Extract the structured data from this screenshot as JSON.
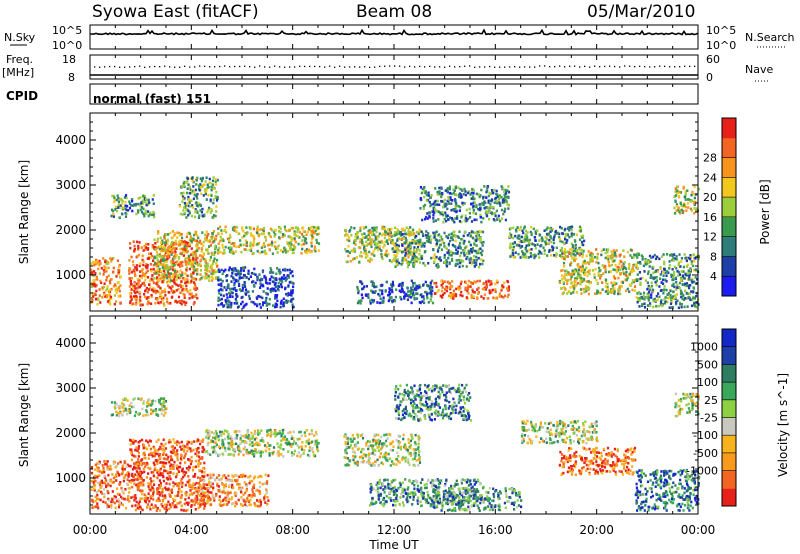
{
  "header": {
    "station": "Syowa East (fitACF)",
    "beam": "Beam 08",
    "date": "05/Mar/2010"
  },
  "summary_panels": {
    "nsky": {
      "label": "N.Sky",
      "right_label": "N.Search",
      "ticks_left": [
        "10^5",
        "10^0"
      ],
      "ticks_right": [
        "10^5",
        "10^0"
      ]
    },
    "freq": {
      "label_line1": "Freq.",
      "label_line2": "[MHz]",
      "right_label": "Nave",
      "ticks_left": [
        "18",
        "8"
      ],
      "ticks_right": [
        "60",
        "0"
      ]
    },
    "cpid": {
      "label": "CPID",
      "mode_text": "normal (fast) 151"
    }
  },
  "time_axis": {
    "label": "Time UT",
    "ticks": [
      "00:00",
      "04:00",
      "08:00",
      "12:00",
      "16:00",
      "20:00",
      "00:00"
    ]
  },
  "chart_data": [
    {
      "type": "heatmap",
      "name": "power",
      "ylabel": "Slant Range [km]",
      "ylim": [
        200,
        4600
      ],
      "yticks": [
        1000,
        2000,
        3000,
        4000
      ],
      "xlim_hours": [
        0,
        24
      ],
      "colorbar": {
        "label": "Power [dB]",
        "tick_labels": [
          "4",
          "8",
          "12",
          "16",
          "20",
          "24",
          "28"
        ],
        "colors": [
          "#1c1cf0",
          "#1e3fa8",
          "#2f7d7a",
          "#3a9b50",
          "#9ccd3c",
          "#f2c81e",
          "#f7941d",
          "#f26522",
          "#e8201a"
        ]
      },
      "echo_regions": [
        {
          "t": [
            0.0,
            1.2
          ],
          "range_km": [
            350,
            1400
          ],
          "level": 0.75
        },
        {
          "t": [
            0.8,
            2.5
          ],
          "range_km": [
            2300,
            2800
          ],
          "level": 0.35
        },
        {
          "t": [
            1.5,
            4.2
          ],
          "range_km": [
            350,
            1800
          ],
          "level": 0.85
        },
        {
          "t": [
            2.5,
            5.0
          ],
          "range_km": [
            900,
            2000
          ],
          "level": 0.6
        },
        {
          "t": [
            3.5,
            5.0
          ],
          "range_km": [
            2300,
            3200
          ],
          "level": 0.4
        },
        {
          "t": [
            5.0,
            9.0
          ],
          "range_km": [
            1500,
            2100
          ],
          "level": 0.55
        },
        {
          "t": [
            5.0,
            8.0
          ],
          "range_km": [
            300,
            1200
          ],
          "level": 0.15
        },
        {
          "t": [
            10.0,
            13.0
          ],
          "range_km": [
            1300,
            2100
          ],
          "level": 0.5
        },
        {
          "t": [
            10.5,
            13.5
          ],
          "range_km": [
            400,
            900
          ],
          "level": 0.2
        },
        {
          "t": [
            13.5,
            16.5
          ],
          "range_km": [
            500,
            900
          ],
          "level": 0.85
        },
        {
          "t": [
            12.0,
            15.5
          ],
          "range_km": [
            1200,
            2000
          ],
          "level": 0.35
        },
        {
          "t": [
            13.0,
            16.5
          ],
          "range_km": [
            2200,
            3000
          ],
          "level": 0.3
        },
        {
          "t": [
            16.5,
            19.5
          ],
          "range_km": [
            1400,
            2100
          ],
          "level": 0.35
        },
        {
          "t": [
            18.5,
            21.5
          ],
          "range_km": [
            600,
            1600
          ],
          "level": 0.55
        },
        {
          "t": [
            21.5,
            24.0
          ],
          "range_km": [
            300,
            1500
          ],
          "level": 0.35
        },
        {
          "t": [
            23.0,
            24.0
          ],
          "range_km": [
            2400,
            3000
          ],
          "level": 0.55
        }
      ]
    },
    {
      "type": "heatmap",
      "name": "velocity",
      "ylabel": "Slant Range [km]",
      "ylim": [
        200,
        4600
      ],
      "yticks": [
        1000,
        2000,
        3000,
        4000
      ],
      "xlim_hours": [
        0,
        24
      ],
      "colorbar": {
        "label": "Velocity [m s^-1]",
        "tick_labels": [
          "1000",
          "500",
          "100",
          "25",
          "-25",
          "-100",
          "-500",
          "-1000"
        ],
        "colors": [
          "#1428c8",
          "#1e3fa8",
          "#2f7d60",
          "#3aa85a",
          "#8ed044",
          "#c8c8be",
          "#f7b21d",
          "#f79a1d",
          "#f26522",
          "#e8201a"
        ]
      },
      "echo_regions": [
        {
          "t": [
            0.0,
            1.5
          ],
          "range_km": [
            350,
            1400
          ],
          "level": 0.8
        },
        {
          "t": [
            1.5,
            4.5
          ],
          "range_km": [
            300,
            1900
          ],
          "level": 0.9
        },
        {
          "t": [
            0.8,
            3.0
          ],
          "range_km": [
            2400,
            2800
          ],
          "level": 0.5
        },
        {
          "t": [
            4.5,
            9.0
          ],
          "range_km": [
            1500,
            2100
          ],
          "level": 0.5
        },
        {
          "t": [
            4.0,
            7.0
          ],
          "range_km": [
            400,
            1100
          ],
          "level": 0.75
        },
        {
          "t": [
            10.0,
            13.0
          ],
          "range_km": [
            1300,
            2000
          ],
          "level": 0.5
        },
        {
          "t": [
            11.0,
            15.5
          ],
          "range_km": [
            400,
            1000
          ],
          "level": 0.3
        },
        {
          "t": [
            13.5,
            17.0
          ],
          "range_km": [
            300,
            800
          ],
          "level": 0.3
        },
        {
          "t": [
            12.0,
            15.0
          ],
          "range_km": [
            2300,
            3100
          ],
          "level": 0.3
        },
        {
          "t": [
            18.5,
            21.5
          ],
          "range_km": [
            1100,
            1700
          ],
          "level": 0.85
        },
        {
          "t": [
            17.0,
            20.0
          ],
          "range_km": [
            1800,
            2300
          ],
          "level": 0.5
        },
        {
          "t": [
            21.5,
            24.0
          ],
          "range_km": [
            300,
            1200
          ],
          "level": 0.2
        },
        {
          "t": [
            23.0,
            24.0
          ],
          "range_km": [
            2400,
            2900
          ],
          "level": 0.5
        }
      ]
    }
  ]
}
